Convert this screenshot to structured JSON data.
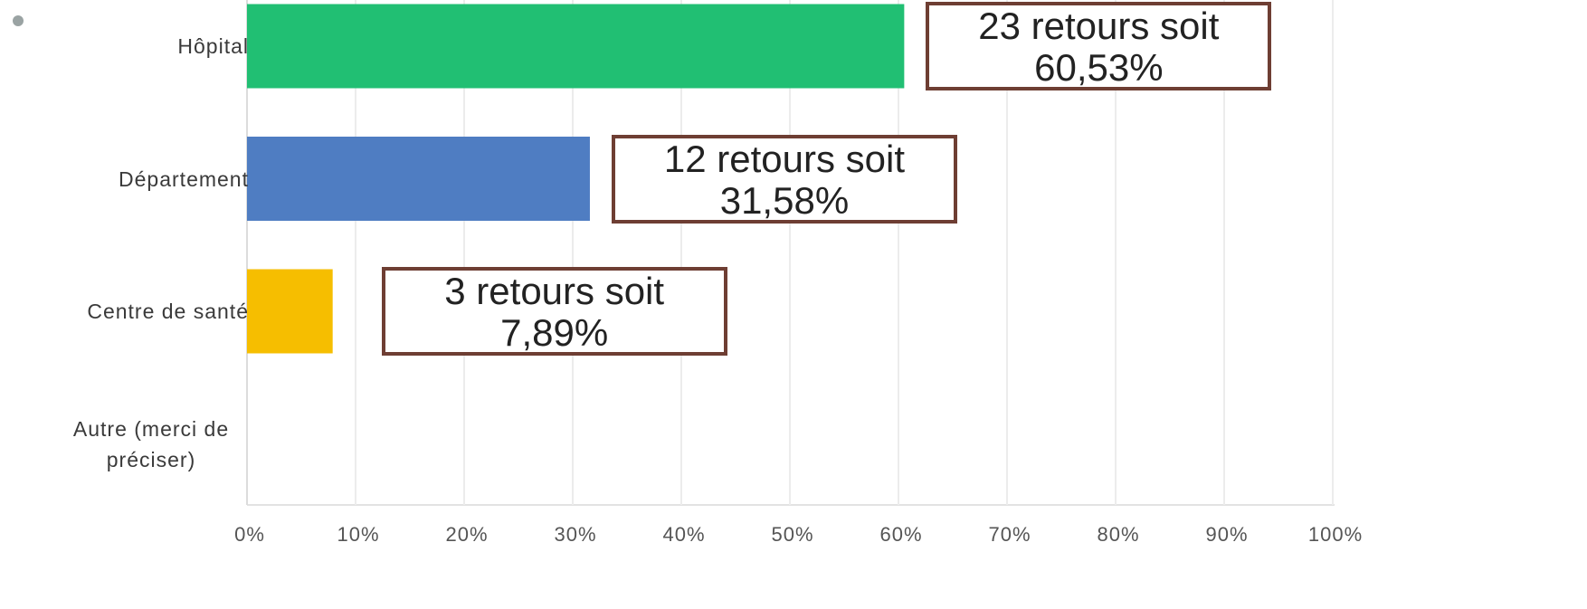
{
  "chart_data": {
    "type": "barh",
    "categories": [
      "Hôpital",
      "Département",
      "Centre de santé",
      "Autre (merci de préciser)"
    ],
    "values": [
      60.53,
      31.58,
      7.89,
      0
    ],
    "value_labels": [
      "23 retours soit 60,53%",
      "12 retours soit 31,58%",
      "3 retours soit 7,89%",
      null
    ],
    "colors": [
      "#21bf73",
      "#4f7dc2",
      "#f6be00",
      "#999999"
    ],
    "xlim": [
      0,
      100
    ],
    "xticks": [
      {
        "value": 0,
        "label": "0%"
      },
      {
        "value": 10,
        "label": "10%"
      },
      {
        "value": 20,
        "label": "20%"
      },
      {
        "value": 30,
        "label": "30%"
      },
      {
        "value": 40,
        "label": "40%"
      },
      {
        "value": 50,
        "label": "50%"
      },
      {
        "value": 60,
        "label": "60%"
      },
      {
        "value": 70,
        "label": "70%"
      },
      {
        "value": 80,
        "label": "80%"
      },
      {
        "value": 90,
        "label": "90%"
      },
      {
        "value": 100,
        "label": "100%"
      }
    ],
    "grid": true
  }
}
